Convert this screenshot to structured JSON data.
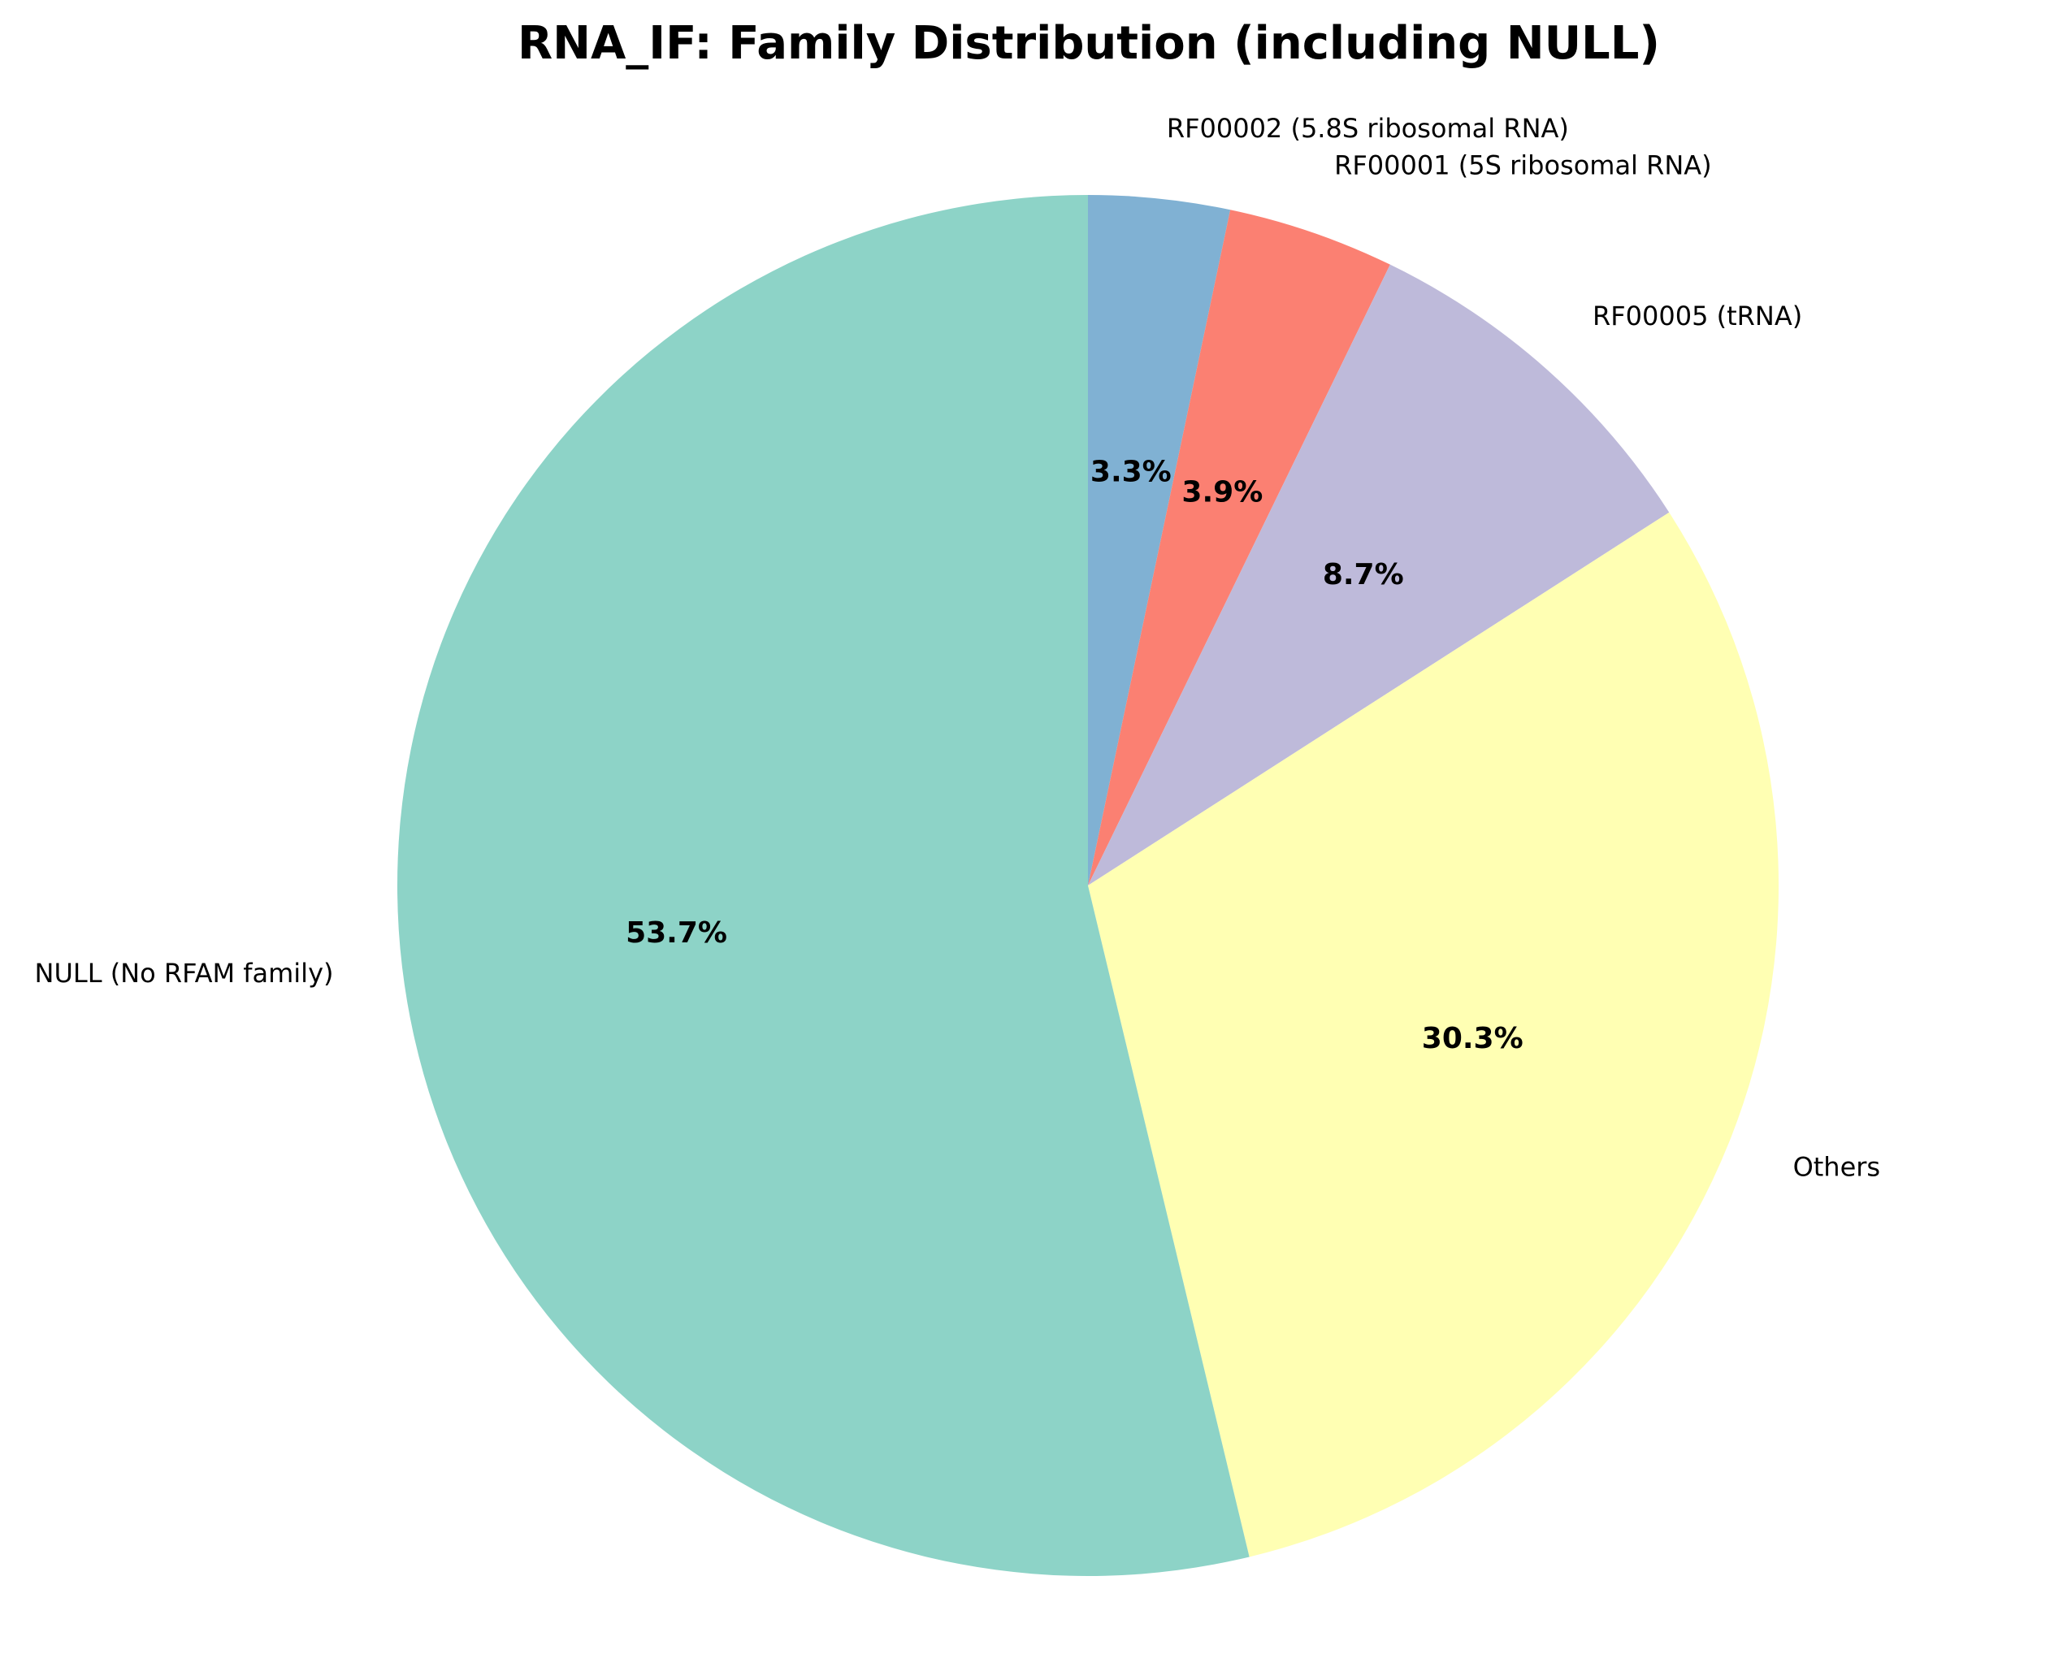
{
  "chart_data": {
    "type": "pie",
    "title": "RNA_IF: Family Distribution (including NULL)",
    "start_angle_deg": 90,
    "direction": "clockwise",
    "slices": [
      {
        "label": "RF00002 (5.8S ribosomal RNA)",
        "percent": 3.3,
        "percent_label": "3.3%",
        "color": "#80b1d3"
      },
      {
        "label": "RF00001 (5S ribosomal RNA)",
        "percent": 3.9,
        "percent_label": "3.9%",
        "color": "#fb8072"
      },
      {
        "label": "RF00005 (tRNA)",
        "percent": 8.7,
        "percent_label": "8.7%",
        "color": "#bebada"
      },
      {
        "label": "Others",
        "percent": 30.3,
        "percent_label": "30.3%",
        "color": "#ffffb3"
      },
      {
        "label": "NULL (No RFAM family)",
        "percent": 53.7,
        "percent_label": "53.7%",
        "color": "#8dd3c7"
      }
    ]
  }
}
